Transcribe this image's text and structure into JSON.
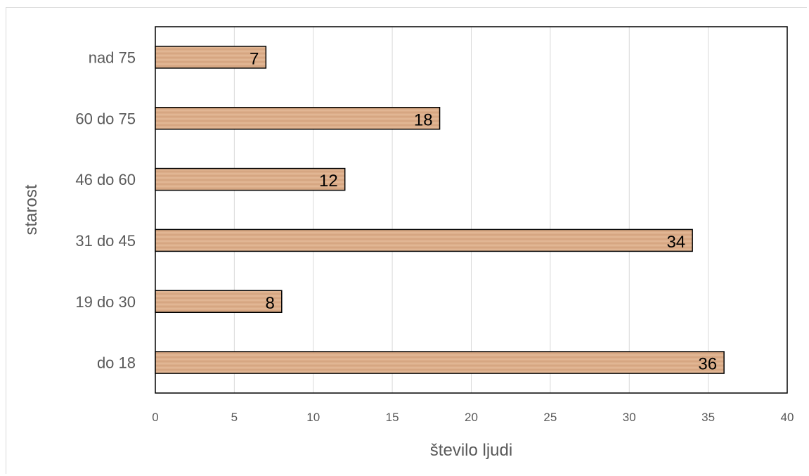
{
  "chart_data": {
    "type": "bar",
    "orientation": "horizontal",
    "categories": [
      "do 18",
      "19 do 30",
      "31 do 45",
      "46 do 60",
      "60 do 75",
      "nad 75"
    ],
    "values": [
      36,
      8,
      34,
      12,
      18,
      7
    ],
    "xlabel": "število ljudi",
    "ylabel": "starost",
    "xlim": [
      0,
      40
    ],
    "xticks": [
      0,
      5,
      10,
      15,
      20,
      25,
      30,
      35,
      40
    ],
    "grid": "vertical",
    "data_labels": true,
    "colors": {
      "bar": "#dcae8a",
      "bar_edge": "#000000",
      "grid": "#d9d9d9",
      "text": "#595959"
    }
  }
}
